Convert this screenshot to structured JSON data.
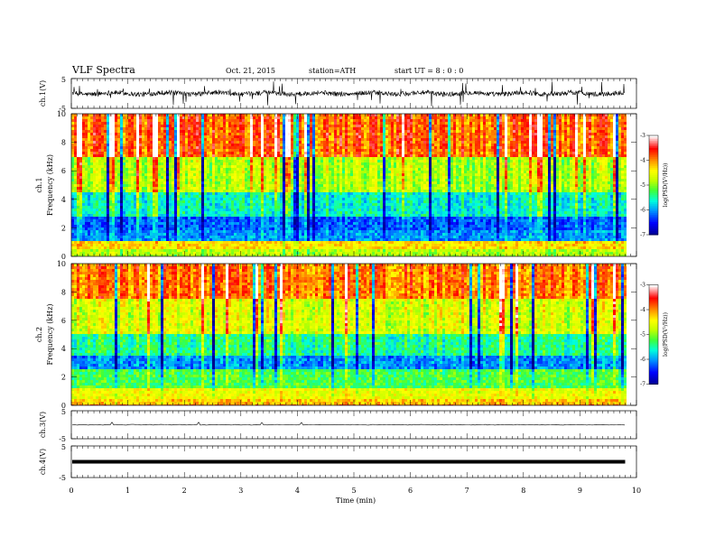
{
  "header": {
    "title": "VLF  Spectra",
    "date": "Oct. 21, 2015",
    "station": "station=ATH",
    "start": "start  UT  =    8  : 0  : 0"
  },
  "colors": {
    "spectrogram_scale": [
      "#000090",
      "#0000ff",
      "#00a0ff",
      "#00ffd0",
      "#40ff40",
      "#c0ff00",
      "#ffff00",
      "#ff9000",
      "#ff0000",
      "#ffffff"
    ],
    "trace": "#000000"
  },
  "chart_data": [
    {
      "type": "line",
      "name": "ch1-waveform",
      "ylabel": "ch.1(V)",
      "ylim": [
        -5,
        5
      ],
      "yticks": [
        "5",
        "-5"
      ],
      "xlim": [
        0,
        10
      ],
      "x": [
        0,
        9.8
      ],
      "values": "noisy trace around 0 V, spikes to about ±5 V"
    },
    {
      "type": "heatmap",
      "name": "ch1-spectrogram",
      "ylabel": "ch.1\nFrequency  (kHz)",
      "ylim": [
        0,
        10
      ],
      "yticks": [
        "0",
        "2",
        "4",
        "6",
        "8",
        "10"
      ],
      "colorbar_label": "log(PSD(V²/Hz))",
      "colorbar_range": [
        -7,
        -3
      ],
      "colorbar_ticks": [
        "-3",
        "-4",
        "-5",
        "-6",
        "-7"
      ],
      "band_psd": [
        {
          "f": [
            0,
            0.5
          ],
          "psd": -4.8
        },
        {
          "f": [
            0.5,
            1.0
          ],
          "psd": -4.3
        },
        {
          "f": [
            1.0,
            1.8
          ],
          "psd": -6.0
        },
        {
          "f": [
            1.8,
            2.8
          ],
          "psd": -6.2
        },
        {
          "f": [
            2.8,
            4.5
          ],
          "psd": -5.6
        },
        {
          "f": [
            4.5,
            7.0
          ],
          "psd": -4.8
        },
        {
          "f": [
            7.0,
            10.0
          ],
          "psd": -3.8
        }
      ]
    },
    {
      "type": "heatmap",
      "name": "ch2-spectrogram",
      "ylabel": "ch.2\nFrequency  (kHz)",
      "ylim": [
        0,
        10
      ],
      "yticks": [
        "0",
        "2",
        "4",
        "6",
        "8",
        "10"
      ],
      "colorbar_label": "log(PSD(V²/Hz))",
      "colorbar_range": [
        -7,
        -3
      ],
      "colorbar_ticks": [
        "-3",
        "-4",
        "-5",
        "-6",
        "-7"
      ],
      "band_psd": [
        {
          "f": [
            0,
            0.5
          ],
          "psd": -4.2
        },
        {
          "f": [
            0.5,
            1.2
          ],
          "psd": -4.5
        },
        {
          "f": [
            1.2,
            2.5
          ],
          "psd": -5.2
        },
        {
          "f": [
            2.5,
            3.5
          ],
          "psd": -6.0
        },
        {
          "f": [
            3.5,
            5.0
          ],
          "psd": -5.4
        },
        {
          "f": [
            5.0,
            7.5
          ],
          "psd": -4.6
        },
        {
          "f": [
            7.5,
            10.0
          ],
          "psd": -3.9
        }
      ]
    },
    {
      "type": "line",
      "name": "ch3-waveform",
      "ylabel": "ch.3(V)",
      "ylim": [
        -5,
        5
      ],
      "yticks": [
        "5",
        "-5"
      ],
      "xlim": [
        0,
        10
      ],
      "x": [
        0,
        9.8
      ],
      "y": [
        0,
        0
      ]
    },
    {
      "type": "line",
      "name": "ch4-waveform",
      "ylabel": "ch.4(V)",
      "ylim": [
        -5,
        5
      ],
      "yticks": [
        "5",
        "-5"
      ],
      "xlim": [
        0,
        10
      ],
      "x": [
        0,
        9.8
      ],
      "y": [
        0,
        0
      ]
    }
  ],
  "xaxis": {
    "label": "Time  (min)",
    "ticks": [
      "0",
      "1",
      "2",
      "3",
      "4",
      "5",
      "6",
      "7",
      "8",
      "9",
      "10"
    ],
    "xlim": [
      0,
      10
    ],
    "data_end": 9.8
  }
}
